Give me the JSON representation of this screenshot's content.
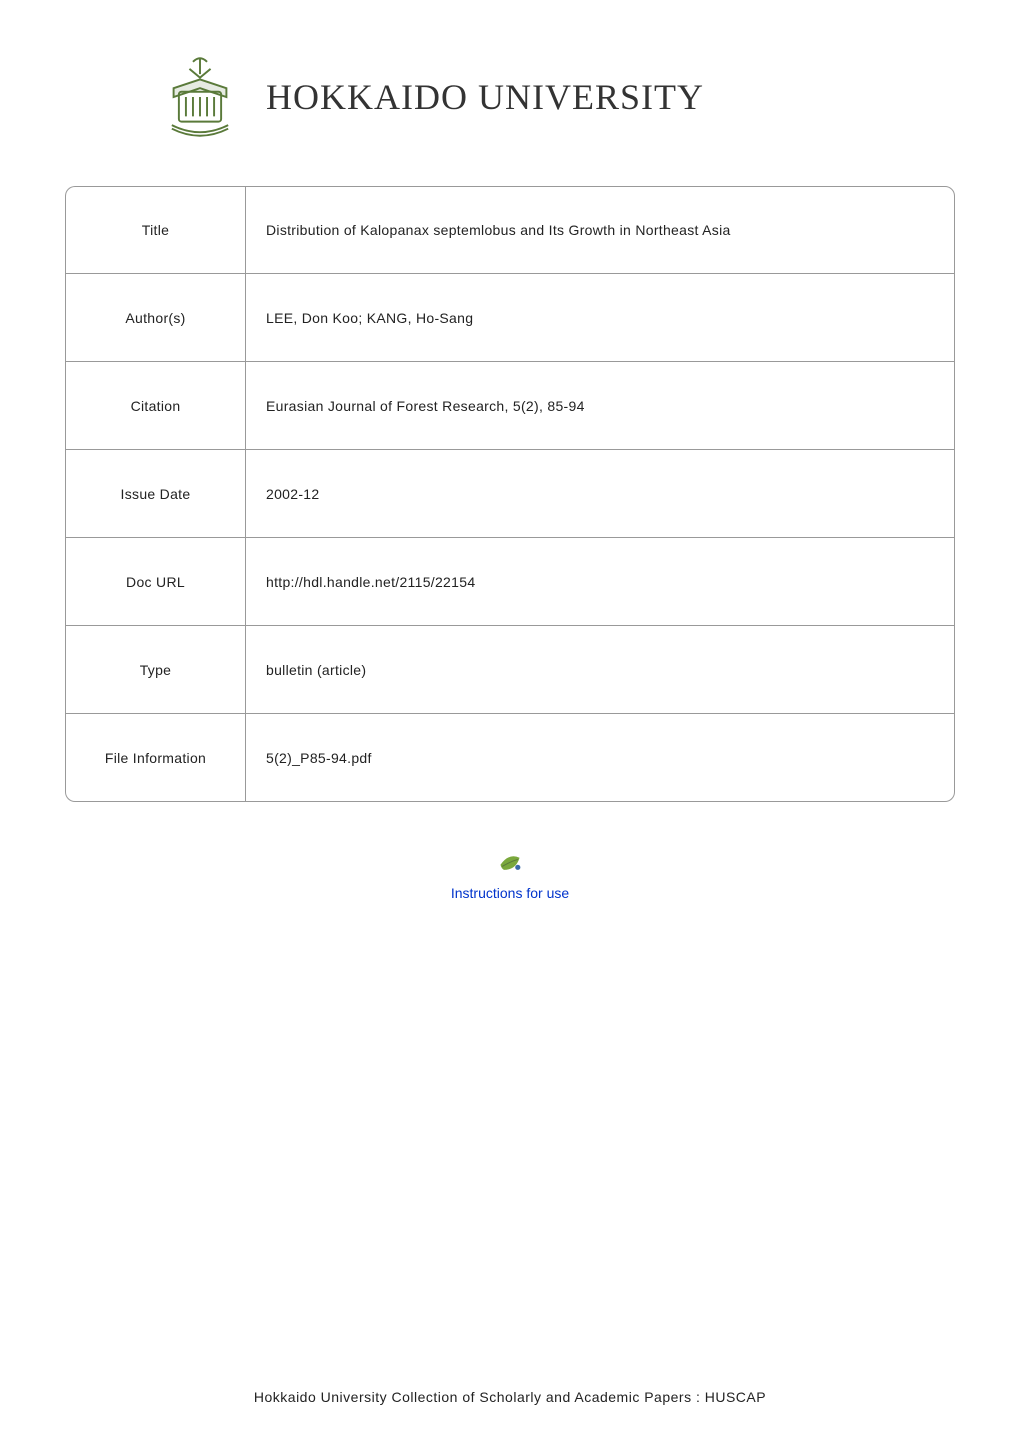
{
  "header": {
    "university_name": "HOKKAIDO UNIVERSITY"
  },
  "metadata": {
    "rows": [
      {
        "label": "Title",
        "value": "Distribution of Kalopanax septemlobus and Its Growth in Northeast Asia"
      },
      {
        "label": "Author(s)",
        "value": "LEE, Don Koo; KANG, Ho-Sang"
      },
      {
        "label": "Citation",
        "value": "Eurasian Journal of Forest Research, 5(2), 85-94"
      },
      {
        "label": "Issue Date",
        "value": "2002-12"
      },
      {
        "label": "Doc URL",
        "value": "http://hdl.handle.net/2115/22154"
      },
      {
        "label": "Type",
        "value": "bulletin (article)"
      },
      {
        "label": "File Information",
        "value": "5(2)_P85-94.pdf"
      }
    ]
  },
  "instructions": {
    "link_text": "Instructions for use"
  },
  "footer": {
    "text": "Hokkaido University Collection of Scholarly and Academic Papers : HUSCAP"
  },
  "colors": {
    "logo_green": "#5a7a3a",
    "link_blue": "#0033cc",
    "border_gray": "#999999",
    "text": "#222222"
  }
}
